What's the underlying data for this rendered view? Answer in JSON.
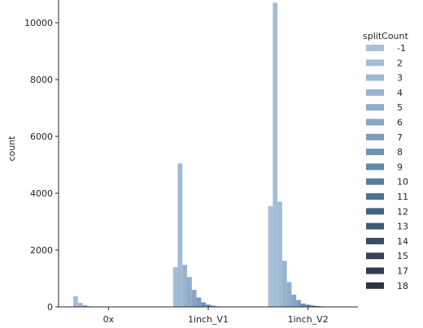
{
  "chart_data": {
    "type": "bar",
    "title": "",
    "xlabel": "",
    "ylabel": "count",
    "ylim": [
      0,
      10800
    ],
    "yticks": [
      0,
      2000,
      4000,
      6000,
      8000,
      10000
    ],
    "grid": false,
    "categories": [
      "0x",
      "1inch_V1",
      "1inch_V2"
    ],
    "legend": {
      "title": "splitCount",
      "placement": "right"
    },
    "series": [
      {
        "name": "-1",
        "color": "#a9c2d8",
        "values": [
          0,
          0,
          3550
        ]
      },
      {
        "name": "2",
        "color": "#a4bed5",
        "values": [
          380,
          1400,
          10700
        ]
      },
      {
        "name": "3",
        "color": "#9fbad2",
        "values": [
          140,
          5050,
          3700
        ]
      },
      {
        "name": "4",
        "color": "#97b3cd",
        "values": [
          60,
          1480,
          1620
        ]
      },
      {
        "name": "5",
        "color": "#8facc8",
        "values": [
          20,
          1050,
          870
        ]
      },
      {
        "name": "6",
        "color": "#86a6c3",
        "values": [
          10,
          600,
          430
        ]
      },
      {
        "name": "7",
        "color": "#7c9ebc",
        "values": [
          5,
          330,
          240
        ]
      },
      {
        "name": "8",
        "color": "#6e93b5",
        "values": [
          0,
          160,
          120
        ]
      },
      {
        "name": "9",
        "color": "#6187ab",
        "values": [
          0,
          80,
          80
        ]
      },
      {
        "name": "10",
        "color": "#567ca0",
        "values": [
          0,
          40,
          50
        ]
      },
      {
        "name": "11",
        "color": "#4c7094",
        "values": [
          0,
          20,
          30
        ]
      },
      {
        "name": "12",
        "color": "#446484",
        "values": [
          0,
          10,
          20
        ]
      },
      {
        "name": "13",
        "color": "#3d5973",
        "values": [
          0,
          5,
          10
        ]
      },
      {
        "name": "14",
        "color": "#374e63",
        "values": [
          0,
          0,
          5
        ]
      },
      {
        "name": "15",
        "color": "#324455",
        "values": [
          0,
          0,
          0
        ]
      },
      {
        "name": "17",
        "color": "#2e3b48",
        "values": [
          0,
          0,
          0
        ]
      },
      {
        "name": "18",
        "color": "#2b3440",
        "values": [
          0,
          0,
          0
        ]
      }
    ]
  }
}
